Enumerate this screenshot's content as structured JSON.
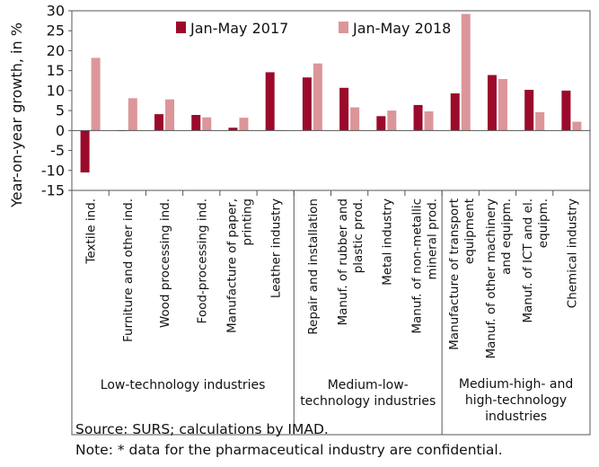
{
  "chart_data": {
    "type": "bar",
    "title": "",
    "ylabel": "Year-on-year growth, in %",
    "ylim": [
      -15,
      30
    ],
    "yticks": [
      -15,
      -10,
      -5,
      0,
      5,
      10,
      15,
      20,
      25,
      30
    ],
    "grid": false,
    "legend_position": "top",
    "categories": [
      "Textile ind.",
      "Furniture and other ind.",
      "Wood processing ind.",
      "Food-processing ind.",
      "Manufacture of paper, printing",
      "Leather industry",
      "Repair and installation",
      "Manuf. of rubber and plastic prod.",
      "Metal industry",
      "Manuf. of non-metallic mineral prod.",
      "Manufacture of transport equipment",
      "Manuf. of other machinery and equipm.",
      "Manuf. of ICT and el. equipm.",
      "Chemical industry"
    ],
    "category_lines": [
      [
        "Textile ind."
      ],
      [
        "Furniture and other ind."
      ],
      [
        "Wood processing ind."
      ],
      [
        "Food-processing ind."
      ],
      [
        "Manufacture of paper,",
        "printing"
      ],
      [
        "Leather industry"
      ],
      [
        "Repair and installation"
      ],
      [
        "Manuf. of rubber and",
        "plastic prod."
      ],
      [
        "Metal industry"
      ],
      [
        "Manuf. of non-metallic",
        "mineral prod."
      ],
      [
        "Manufacture of transport",
        "equipment"
      ],
      [
        "Manuf. of other machinery",
        "and equipm."
      ],
      [
        "Manuf. of ICT and el.",
        "equipm."
      ],
      [
        "Chemical industry"
      ]
    ],
    "series": [
      {
        "name": "Jan-May 2017",
        "color": "#9b0a2b",
        "values": [
          -10.5,
          0,
          4.1,
          3.9,
          0.7,
          14.6,
          13.3,
          10.7,
          3.6,
          6.4,
          9.3,
          13.9,
          10.2,
          10.0
        ]
      },
      {
        "name": "Jan-May 2018",
        "color": "#dc9699",
        "values": [
          18.2,
          8.1,
          7.8,
          3.3,
          3.2,
          0,
          16.8,
          5.8,
          5.0,
          4.8,
          29.2,
          12.9,
          4.6,
          2.2
        ]
      }
    ],
    "groups": [
      {
        "label_lines": [
          "Low-technology industries"
        ],
        "start": 0,
        "end": 5
      },
      {
        "label_lines": [
          "Medium-low-",
          "technology industries"
        ],
        "start": 6,
        "end": 9
      },
      {
        "label_lines": [
          "Medium-high- and",
          "high-technology",
          "industries"
        ],
        "start": 10,
        "end": 13
      }
    ]
  },
  "notes": {
    "source": "Source: SURS; calculations by IMAD.",
    "note": "Note: * data for the pharmaceutical industry are confidential."
  }
}
